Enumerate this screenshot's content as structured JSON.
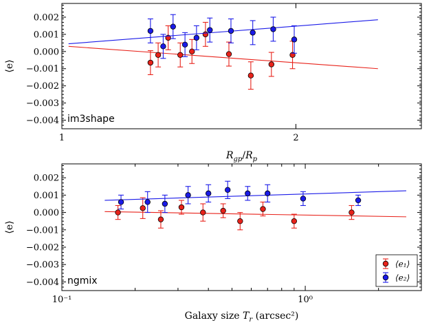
{
  "chart_data": [
    {
      "type": "scatter",
      "panel_label": "im3shape",
      "xlabel": "R_gp/R_p",
      "ylabel": "⟨e⟩",
      "xscale": "log",
      "xlim": [
        1.0,
        2.9
      ],
      "ylim": [
        -0.0045,
        0.0028
      ],
      "xticks": [
        {
          "value": 1,
          "label": "1"
        },
        {
          "value": 2,
          "label": "2"
        }
      ],
      "yticks": [
        {
          "value": 0.002,
          "label": "0.002"
        },
        {
          "value": 0.001,
          "label": "0.001"
        },
        {
          "value": 0.0,
          "label": "0.000"
        },
        {
          "value": -0.001,
          "label": "−0.001"
        },
        {
          "value": -0.002,
          "label": "−0.002"
        },
        {
          "value": -0.003,
          "label": "−0.003"
        },
        {
          "value": -0.004,
          "label": "−0.004"
        }
      ],
      "grid": false,
      "series": [
        {
          "color": "#e8221a",
          "points": [
            {
              "x": 1.3,
              "y": -0.00065,
              "err": 0.0007
            },
            {
              "x": 1.33,
              "y": -0.0002,
              "err": 0.0007
            },
            {
              "x": 1.37,
              "y": 0.0008,
              "err": 0.0007
            },
            {
              "x": 1.42,
              "y": -0.0002,
              "err": 0.0007
            },
            {
              "x": 1.47,
              "y": 0.0,
              "err": 0.0007
            },
            {
              "x": 1.53,
              "y": 0.001,
              "err": 0.0007
            },
            {
              "x": 1.64,
              "y": -0.00015,
              "err": 0.0007
            },
            {
              "x": 1.75,
              "y": -0.0014,
              "err": 0.0008
            },
            {
              "x": 1.86,
              "y": -0.00075,
              "err": 0.0007
            },
            {
              "x": 1.98,
              "y": -0.0002,
              "err": 0.0008
            }
          ],
          "fit": {
            "x": [
              1.02,
              2.55
            ],
            "y": [
              0.0003,
              -0.001
            ]
          }
        },
        {
          "color": "#1a1ae8",
          "points": [
            {
              "x": 1.3,
              "y": 0.0012,
              "err": 0.0007
            },
            {
              "x": 1.35,
              "y": 0.0003,
              "err": 0.0007
            },
            {
              "x": 1.39,
              "y": 0.00145,
              "err": 0.0007
            },
            {
              "x": 1.44,
              "y": 0.0004,
              "err": 0.0007
            },
            {
              "x": 1.49,
              "y": 0.0008,
              "err": 0.0007
            },
            {
              "x": 1.55,
              "y": 0.00125,
              "err": 0.0007
            },
            {
              "x": 1.65,
              "y": 0.0012,
              "err": 0.0007
            },
            {
              "x": 1.76,
              "y": 0.0011,
              "err": 0.0007
            },
            {
              "x": 1.87,
              "y": 0.0013,
              "err": 0.0007
            },
            {
              "x": 1.99,
              "y": 0.0007,
              "err": 0.0008
            }
          ],
          "fit": {
            "x": [
              1.02,
              2.55
            ],
            "y": [
              0.00045,
              0.00185
            ]
          }
        }
      ]
    },
    {
      "type": "scatter",
      "panel_label": "ngmix",
      "xlabel": "Galaxy size T_r (arcsec²)",
      "ylabel": "⟨e⟩",
      "xscale": "log",
      "xlim": [
        0.1,
        3.0
      ],
      "ylim": [
        -0.0045,
        0.0028
      ],
      "xticks": [
        {
          "value": 0.1,
          "label": "10⁻¹"
        },
        {
          "value": 1,
          "label": "10⁰"
        }
      ],
      "yticks": [
        {
          "value": 0.002,
          "label": "0.002"
        },
        {
          "value": 0.001,
          "label": "0.001"
        },
        {
          "value": 0.0,
          "label": "0.000"
        },
        {
          "value": -0.001,
          "label": "−0.001"
        },
        {
          "value": -0.002,
          "label": "−0.002"
        },
        {
          "value": -0.003,
          "label": "−0.003"
        },
        {
          "value": -0.004,
          "label": "−0.004"
        }
      ],
      "grid": false,
      "legend": {
        "placement": "lower-right",
        "entries": [
          "⟨e₁⟩",
          "⟨e₂⟩"
        ]
      },
      "series": [
        {
          "name": "⟨e₁⟩",
          "color": "#e8221a",
          "points": [
            {
              "x": 0.17,
              "y": 0.0,
              "err": 0.0004
            },
            {
              "x": 0.215,
              "y": 0.00025,
              "err": 0.0006
            },
            {
              "x": 0.255,
              "y": -0.0004,
              "err": 0.0005
            },
            {
              "x": 0.31,
              "y": 0.0003,
              "err": 0.0004
            },
            {
              "x": 0.38,
              "y": 0.0,
              "err": 0.0005
            },
            {
              "x": 0.46,
              "y": 0.0001,
              "err": 0.0004
            },
            {
              "x": 0.54,
              "y": -0.0005,
              "err": 0.0005
            },
            {
              "x": 0.67,
              "y": 0.0002,
              "err": 0.0004
            },
            {
              "x": 0.9,
              "y": -0.0005,
              "err": 0.0004
            },
            {
              "x": 1.55,
              "y": 0.0,
              "err": 0.0004
            }
          ],
          "fit": {
            "x": [
              0.15,
              2.6
            ],
            "y": [
              5e-05,
              -0.00025
            ]
          }
        },
        {
          "name": "⟨e₂⟩",
          "color": "#1a1ae8",
          "points": [
            {
              "x": 0.175,
              "y": 0.0006,
              "err": 0.0004
            },
            {
              "x": 0.225,
              "y": 0.0006,
              "err": 0.0006
            },
            {
              "x": 0.265,
              "y": 0.0005,
              "err": 0.0005
            },
            {
              "x": 0.33,
              "y": 0.001,
              "err": 0.0005
            },
            {
              "x": 0.4,
              "y": 0.0011,
              "err": 0.0005
            },
            {
              "x": 0.48,
              "y": 0.0013,
              "err": 0.0005
            },
            {
              "x": 0.58,
              "y": 0.0011,
              "err": 0.0004
            },
            {
              "x": 0.7,
              "y": 0.0011,
              "err": 0.0005
            },
            {
              "x": 0.98,
              "y": 0.0008,
              "err": 0.0004
            },
            {
              "x": 1.65,
              "y": 0.0007,
              "err": 0.0003
            }
          ],
          "fit": {
            "x": [
              0.15,
              2.6
            ],
            "y": [
              0.0007,
              0.00125
            ]
          }
        }
      ]
    }
  ]
}
